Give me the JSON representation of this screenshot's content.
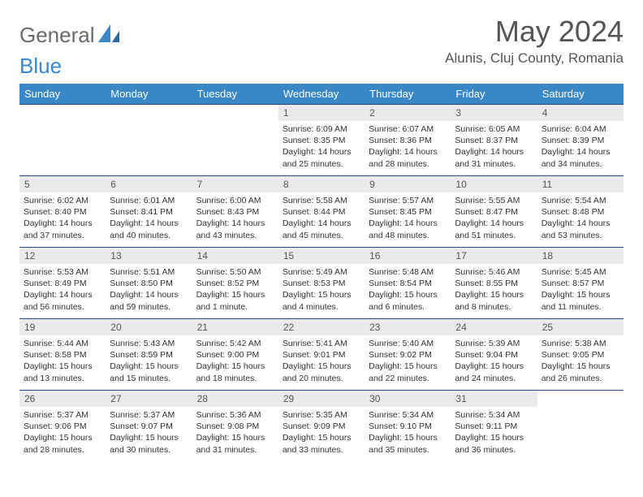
{
  "brand": {
    "word1": "General",
    "word2": "Blue"
  },
  "title": "May 2024",
  "subtitle": "Alunis, Cluj County, Romania",
  "colors": {
    "header_bg": "#3a87c8",
    "header_text": "#ffffff",
    "daynum_bg": "#e9eaec",
    "border": "#264a6e",
    "brand_gray": "#6a6a6a",
    "brand_blue": "#3a87c8"
  },
  "weekdays": [
    "Sunday",
    "Monday",
    "Tuesday",
    "Wednesday",
    "Thursday",
    "Friday",
    "Saturday"
  ],
  "weeks": [
    [
      null,
      null,
      null,
      {
        "n": "1",
        "sr": "6:09 AM",
        "ss": "8:35 PM",
        "dl": "14 hours and 25 minutes."
      },
      {
        "n": "2",
        "sr": "6:07 AM",
        "ss": "8:36 PM",
        "dl": "14 hours and 28 minutes."
      },
      {
        "n": "3",
        "sr": "6:05 AM",
        "ss": "8:37 PM",
        "dl": "14 hours and 31 minutes."
      },
      {
        "n": "4",
        "sr": "6:04 AM",
        "ss": "8:39 PM",
        "dl": "14 hours and 34 minutes."
      }
    ],
    [
      {
        "n": "5",
        "sr": "6:02 AM",
        "ss": "8:40 PM",
        "dl": "14 hours and 37 minutes."
      },
      {
        "n": "6",
        "sr": "6:01 AM",
        "ss": "8:41 PM",
        "dl": "14 hours and 40 minutes."
      },
      {
        "n": "7",
        "sr": "6:00 AM",
        "ss": "8:43 PM",
        "dl": "14 hours and 43 minutes."
      },
      {
        "n": "8",
        "sr": "5:58 AM",
        "ss": "8:44 PM",
        "dl": "14 hours and 45 minutes."
      },
      {
        "n": "9",
        "sr": "5:57 AM",
        "ss": "8:45 PM",
        "dl": "14 hours and 48 minutes."
      },
      {
        "n": "10",
        "sr": "5:55 AM",
        "ss": "8:47 PM",
        "dl": "14 hours and 51 minutes."
      },
      {
        "n": "11",
        "sr": "5:54 AM",
        "ss": "8:48 PM",
        "dl": "14 hours and 53 minutes."
      }
    ],
    [
      {
        "n": "12",
        "sr": "5:53 AM",
        "ss": "8:49 PM",
        "dl": "14 hours and 56 minutes."
      },
      {
        "n": "13",
        "sr": "5:51 AM",
        "ss": "8:50 PM",
        "dl": "14 hours and 59 minutes."
      },
      {
        "n": "14",
        "sr": "5:50 AM",
        "ss": "8:52 PM",
        "dl": "15 hours and 1 minute."
      },
      {
        "n": "15",
        "sr": "5:49 AM",
        "ss": "8:53 PM",
        "dl": "15 hours and 4 minutes."
      },
      {
        "n": "16",
        "sr": "5:48 AM",
        "ss": "8:54 PM",
        "dl": "15 hours and 6 minutes."
      },
      {
        "n": "17",
        "sr": "5:46 AM",
        "ss": "8:55 PM",
        "dl": "15 hours and 8 minutes."
      },
      {
        "n": "18",
        "sr": "5:45 AM",
        "ss": "8:57 PM",
        "dl": "15 hours and 11 minutes."
      }
    ],
    [
      {
        "n": "19",
        "sr": "5:44 AM",
        "ss": "8:58 PM",
        "dl": "15 hours and 13 minutes."
      },
      {
        "n": "20",
        "sr": "5:43 AM",
        "ss": "8:59 PM",
        "dl": "15 hours and 15 minutes."
      },
      {
        "n": "21",
        "sr": "5:42 AM",
        "ss": "9:00 PM",
        "dl": "15 hours and 18 minutes."
      },
      {
        "n": "22",
        "sr": "5:41 AM",
        "ss": "9:01 PM",
        "dl": "15 hours and 20 minutes."
      },
      {
        "n": "23",
        "sr": "5:40 AM",
        "ss": "9:02 PM",
        "dl": "15 hours and 22 minutes."
      },
      {
        "n": "24",
        "sr": "5:39 AM",
        "ss": "9:04 PM",
        "dl": "15 hours and 24 minutes."
      },
      {
        "n": "25",
        "sr": "5:38 AM",
        "ss": "9:05 PM",
        "dl": "15 hours and 26 minutes."
      }
    ],
    [
      {
        "n": "26",
        "sr": "5:37 AM",
        "ss": "9:06 PM",
        "dl": "15 hours and 28 minutes."
      },
      {
        "n": "27",
        "sr": "5:37 AM",
        "ss": "9:07 PM",
        "dl": "15 hours and 30 minutes."
      },
      {
        "n": "28",
        "sr": "5:36 AM",
        "ss": "9:08 PM",
        "dl": "15 hours and 31 minutes."
      },
      {
        "n": "29",
        "sr": "5:35 AM",
        "ss": "9:09 PM",
        "dl": "15 hours and 33 minutes."
      },
      {
        "n": "30",
        "sr": "5:34 AM",
        "ss": "9:10 PM",
        "dl": "15 hours and 35 minutes."
      },
      {
        "n": "31",
        "sr": "5:34 AM",
        "ss": "9:11 PM",
        "dl": "15 hours and 36 minutes."
      },
      null
    ]
  ],
  "labels": {
    "sunrise": "Sunrise:",
    "sunset": "Sunset:",
    "daylight": "Daylight:"
  }
}
